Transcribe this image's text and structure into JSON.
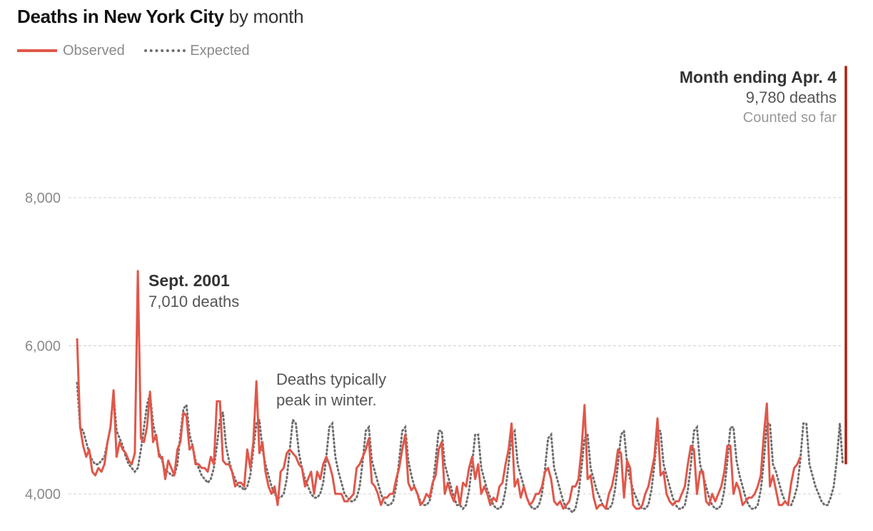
{
  "title": {
    "bold": "Deaths in New York City",
    "rest": " by month"
  },
  "legend": {
    "observed": "Observed",
    "expected": "Expected"
  },
  "colors": {
    "observed": "#e0574a",
    "expected": "#6e6e6e",
    "highlight": "#b21e10",
    "grid": "#d0d0d0"
  },
  "annotations": {
    "sept2001": {
      "title": "Sept. 2001",
      "value": "7,010 deaths"
    },
    "winter": {
      "line1": "Deaths typically",
      "line2": "peak in winter."
    },
    "apr4": {
      "title": "Month ending Apr. 4",
      "value": "9,780 deaths",
      "note": "Counted so far"
    }
  },
  "chart_data": {
    "type": "line",
    "ylim": [
      3800,
      10000
    ],
    "yticks": [
      {
        "value": 4000,
        "label": "4,000"
      },
      {
        "value": 6000,
        "label": "6,000"
      },
      {
        "value": 8000,
        "label": "8,000"
      }
    ],
    "grid": true,
    "legend": "top-left",
    "x_start": "Jan. 2000",
    "highlight": {
      "value": 9780,
      "label": "Month ending Apr. 4"
    },
    "series": [
      {
        "name": "Observed",
        "values": [
          6100,
          4900,
          4650,
          4500,
          4600,
          4300,
          4250,
          4350,
          4300,
          4400,
          4700,
          4900,
          5400,
          4500,
          4700,
          4600,
          4550,
          4450,
          4400,
          4550,
          7010,
          4750,
          4700,
          4900,
          5380,
          4700,
          4800,
          4500,
          4500,
          4200,
          4450,
          4350,
          4250,
          4600,
          4700,
          5100,
          5050,
          4600,
          4650,
          4400,
          4400,
          4350,
          4350,
          4300,
          4500,
          4400,
          5250,
          5250,
          4450,
          4400,
          4400,
          4300,
          4100,
          4150,
          4150,
          4100,
          4600,
          4350,
          4700,
          5520,
          4550,
          4700,
          4300,
          4100,
          4000,
          4100,
          3850,
          4300,
          4350,
          4550,
          4600,
          4550,
          4500,
          4400,
          4350,
          4100,
          4200,
          4300,
          4000,
          4300,
          4200,
          4400,
          4500,
          4400,
          4250,
          4000,
          4000,
          4000,
          3900,
          3900,
          3950,
          4000,
          4350,
          4400,
          4500,
          4600,
          4750,
          4150,
          4100,
          4000,
          3850,
          3950,
          3950,
          4000,
          4000,
          4200,
          4350,
          4600,
          4800,
          4150,
          4050,
          4100,
          4000,
          3850,
          3900,
          4000,
          3950,
          4150,
          4250,
          4600,
          4700,
          4000,
          4150,
          4000,
          3900,
          4100,
          3850,
          4150,
          4100,
          4350,
          4500,
          4200,
          4400,
          4000,
          4100,
          4000,
          3850,
          3950,
          3900,
          4100,
          4150,
          4400,
          4600,
          4950,
          4100,
          4200,
          3950,
          4100,
          3950,
          3850,
          3900,
          4000,
          4000,
          4100,
          4300,
          4350,
          4200,
          3900,
          3850,
          3900,
          3800,
          3850,
          3900,
          4100,
          4100,
          4200,
          4600,
          5200,
          4200,
          4250,
          3950,
          3800,
          3850,
          3850,
          3800,
          4000,
          4100,
          4300,
          4600,
          4550,
          3950,
          4450,
          4350,
          3850,
          3800,
          3800,
          3850,
          4000,
          4100,
          4300,
          4500,
          5020,
          4250,
          4300,
          4000,
          3900,
          3850,
          3900,
          3900,
          4000,
          4100,
          4400,
          4650,
          4600,
          4000,
          4300,
          4300,
          3900,
          3850,
          4000,
          3900,
          4000,
          4100,
          4300,
          4650,
          4650,
          4000,
          4150,
          4050,
          3850,
          3900,
          3950,
          3950,
          4000,
          4100,
          4250,
          4800,
          5220,
          4100,
          4250,
          4050,
          3850,
          3850,
          3900,
          3850,
          4150,
          4350,
          4400,
          4500
        ]
      },
      {
        "name": "Expected",
        "values": [
          5500,
          4900,
          4850,
          4700,
          4550,
          4450,
          4400,
          4400,
          4450,
          4500,
          4700,
          4900,
          5350,
          4850,
          4750,
          4650,
          4500,
          4400,
          4350,
          4300,
          4350,
          4600,
          4900,
          5200,
          5350,
          4950,
          4750,
          4550,
          4450,
          4300,
          4300,
          4250,
          4250,
          4400,
          4800,
          5150,
          5200,
          4800,
          4650,
          4450,
          4350,
          4250,
          4200,
          4150,
          4200,
          4350,
          4650,
          5000,
          5100,
          4650,
          4450,
          4300,
          4200,
          4100,
          4100,
          4050,
          4100,
          4250,
          4600,
          4950,
          5000,
          4600,
          4400,
          4250,
          4100,
          4000,
          3950,
          3950,
          4000,
          4200,
          4600,
          5000,
          4950,
          4550,
          4350,
          4200,
          4100,
          4000,
          3950,
          3950,
          4000,
          4150,
          4500,
          4900,
          4950,
          4500,
          4300,
          4150,
          4000,
          3950,
          3900,
          3900,
          3950,
          4100,
          4450,
          4850,
          4900,
          4450,
          4300,
          4150,
          4000,
          3900,
          3850,
          3850,
          3900,
          4100,
          4450,
          4850,
          4900,
          4450,
          4250,
          4100,
          4000,
          3900,
          3850,
          3850,
          3900,
          4100,
          4450,
          4850,
          4850,
          4400,
          4250,
          4100,
          3950,
          3850,
          3850,
          3800,
          3850,
          4050,
          4400,
          4800,
          4800,
          4350,
          4200,
          4050,
          3950,
          3850,
          3800,
          3800,
          3850,
          4050,
          4400,
          4800,
          4850,
          4400,
          4250,
          4100,
          3950,
          3850,
          3800,
          3800,
          3850,
          4000,
          4350,
          4750,
          4800,
          4350,
          4200,
          4050,
          3900,
          3800,
          3800,
          3750,
          3800,
          4000,
          4350,
          4750,
          4800,
          4350,
          4200,
          4050,
          3950,
          3850,
          3800,
          3800,
          3850,
          4050,
          4400,
          4800,
          4850,
          4400,
          4200,
          4050,
          3950,
          3850,
          3800,
          3800,
          3850,
          4050,
          4400,
          4850,
          4850,
          4400,
          4250,
          4100,
          3950,
          3850,
          3800,
          3800,
          3850,
          4050,
          4400,
          4850,
          4900,
          4400,
          4250,
          4100,
          3950,
          3850,
          3800,
          3800,
          3850,
          4050,
          4450,
          4900,
          4900,
          4450,
          4250,
          4100,
          3950,
          3850,
          3800,
          3800,
          3850,
          4050,
          4450,
          4950,
          4950,
          4400,
          4300,
          4150,
          4000,
          3900,
          3850,
          3850,
          3950,
          4100,
          4450,
          4950,
          4950,
          4400,
          4250,
          4100,
          4000,
          3900,
          3850,
          3850,
          3950,
          4100,
          4450,
          4950,
          4400
        ]
      }
    ]
  }
}
